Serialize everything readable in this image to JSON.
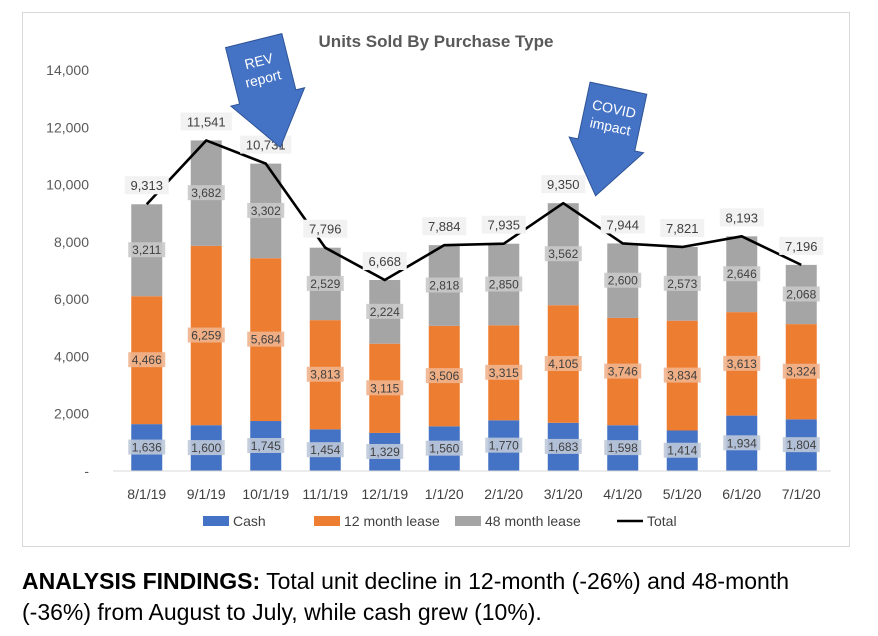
{
  "chart_data": {
    "type": "bar",
    "stacked": true,
    "title": "Units Sold By Purchase Type",
    "categories": [
      "8/1/19",
      "9/1/19",
      "10/1/19",
      "11/1/19",
      "12/1/19",
      "1/1/20",
      "2/1/20",
      "3/1/20",
      "4/1/20",
      "5/1/20",
      "6/1/20",
      "7/1/20"
    ],
    "series": [
      {
        "name": "Cash",
        "color": "#4472C4",
        "values": [
          1636,
          1600,
          1745,
          1454,
          1329,
          1560,
          1770,
          1683,
          1598,
          1414,
          1934,
          1804
        ]
      },
      {
        "name": "12 month lease",
        "color": "#ED7D31",
        "values": [
          4466,
          6259,
          5684,
          3813,
          3115,
          3506,
          3315,
          4105,
          3746,
          3834,
          3613,
          3324
        ]
      },
      {
        "name": "48 month lease",
        "color": "#A5A5A5",
        "values": [
          3211,
          3682,
          3302,
          2529,
          2224,
          2818,
          2850,
          3562,
          2600,
          2573,
          2646,
          2068
        ]
      }
    ],
    "line_series": {
      "name": "Total",
      "color": "#000000",
      "values": [
        9313,
        11541,
        10731,
        7796,
        6668,
        7884,
        7935,
        9350,
        7944,
        7821,
        8193,
        7196
      ]
    },
    "yticks": [
      "-",
      "2,000",
      "4,000",
      "6,000",
      "8,000",
      "10,000",
      "12,000",
      "14,000"
    ],
    "ylim": [
      0,
      14000
    ],
    "legend_position": "bottom",
    "annotations": [
      {
        "label": "REV report",
        "lines": [
          "REV",
          "report"
        ],
        "color": "#4472C4"
      },
      {
        "label": "COVID impact",
        "lines": [
          "COVID",
          "impact"
        ],
        "color": "#4472C4"
      }
    ]
  },
  "findings": {
    "lead": "ANALYSIS FINDINGS:",
    "text": " Total unit decline in 12-month (-26%) and 48-month (-36%) from August to July, while cash grew (10%)."
  }
}
